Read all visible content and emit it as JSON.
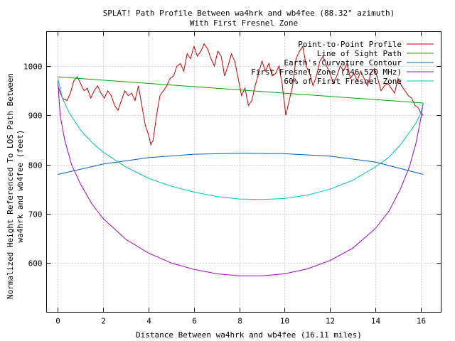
{
  "chart_data": {
    "type": "line",
    "title": "SPLAT! Path Profile Between wa4hrk and wb4fee (88.32° azimuth)",
    "subtitle": "With First Fresnel Zone",
    "xlabel": "Distance Between wa4hrk and wb4fee (16.11 miles)",
    "ylabel_line1": "Normalized Height Referenced To LOS Path Between",
    "ylabel_line2": "wa4hrk and wb4fee (feet)",
    "xlim": [
      -0.5,
      16.9
    ],
    "ylim": [
      500,
      1070
    ],
    "xticks": [
      0,
      2,
      4,
      6,
      8,
      10,
      12,
      14,
      16
    ],
    "yticks": [
      600,
      700,
      800,
      900,
      1000
    ],
    "grid": true,
    "legend_position": "top-right",
    "series": [
      {
        "name": "Point-to-Point Profile",
        "color": "#cc0000",
        "x": [
          0.0,
          0.2,
          0.4,
          0.55,
          0.7,
          0.85,
          1.0,
          1.15,
          1.3,
          1.45,
          1.6,
          1.75,
          1.9,
          2.05,
          2.2,
          2.35,
          2.5,
          2.65,
          2.8,
          2.95,
          3.1,
          3.25,
          3.4,
          3.55,
          3.7,
          3.85,
          4.0,
          4.1,
          4.2,
          4.35,
          4.5,
          4.65,
          4.8,
          4.95,
          5.1,
          5.25,
          5.4,
          5.55,
          5.7,
          5.85,
          6.0,
          6.15,
          6.3,
          6.45,
          6.6,
          6.75,
          6.9,
          7.05,
          7.2,
          7.35,
          7.5,
          7.65,
          7.8,
          7.95,
          8.1,
          8.25,
          8.4,
          8.55,
          8.7,
          8.85,
          9.0,
          9.15,
          9.3,
          9.45,
          9.6,
          9.75,
          9.9,
          10.05,
          10.2,
          10.35,
          10.5,
          10.65,
          10.8,
          10.95,
          11.1,
          11.25,
          11.4,
          11.55,
          11.7,
          11.85,
          12.0,
          12.15,
          12.3,
          12.45,
          12.6,
          12.75,
          12.9,
          13.05,
          13.2,
          13.35,
          13.5,
          13.65,
          13.8,
          13.95,
          14.1,
          14.25,
          14.4,
          14.55,
          14.7,
          14.85,
          15.0,
          15.15,
          15.3,
          15.45,
          15.6,
          15.75,
          15.9,
          16.0,
          16.11
        ],
        "y": [
          960,
          935,
          930,
          945,
          970,
          978,
          965,
          950,
          955,
          935,
          950,
          960,
          945,
          935,
          950,
          940,
          920,
          910,
          930,
          950,
          940,
          945,
          930,
          960,
          920,
          880,
          860,
          840,
          850,
          900,
          940,
          950,
          960,
          975,
          980,
          1000,
          1005,
          990,
          1025,
          1015,
          1040,
          1020,
          1030,
          1045,
          1035,
          1015,
          1000,
          1030,
          1020,
          980,
          1000,
          1025,
          1010,
          975,
          940,
          955,
          920,
          930,
          960,
          985,
          1010,
          990,
          1005,
          980,
          985,
          1000,
          960,
          900,
          930,
          960,
          1015,
          1030,
          1040,
          1000,
          985,
          960,
          980,
          1010,
          1020,
          1000,
          985,
          965,
          980,
          1000,
          990,
          1005,
          975,
          985,
          970,
          990,
          975,
          960,
          985,
          995,
          975,
          950,
          960,
          965,
          955,
          945,
          975,
          960,
          950,
          940,
          935,
          920,
          915,
          905,
          900
        ]
      },
      {
        "name": "Line of Sight Path",
        "color": "#00a000",
        "x": [
          0,
          16.11
        ],
        "y": [
          978,
          925
        ]
      },
      {
        "name": "Earth's Curvature Contour",
        "color": "#0060c0",
        "x": [
          0,
          2,
          4,
          6,
          8,
          8.06,
          10,
          12,
          14,
          16.11
        ],
        "y": [
          780,
          801,
          814,
          821,
          823,
          823,
          822,
          817,
          805,
          780
        ]
      },
      {
        "name": "First Fresnel Zone (146.520 MHz)",
        "color": "#a000c0",
        "x": [
          0,
          0.1,
          0.3,
          0.6,
          1,
          1.5,
          2,
          3,
          4,
          5,
          6,
          7,
          8,
          9,
          10,
          11,
          12,
          13,
          14,
          14.6,
          15.1,
          15.5,
          15.8,
          16.01,
          16.11
        ],
        "y": [
          970,
          900,
          850,
          800,
          760,
          720,
          690,
          648,
          620,
          600,
          587,
          578,
          574,
          574,
          578,
          588,
          605,
          630,
          670,
          705,
          750,
          795,
          845,
          895,
          925
        ]
      },
      {
        "name": "60% of First Fresnel Zone",
        "color": "#00c0c0",
        "x": [
          0,
          0.2,
          0.5,
          1,
          1.5,
          2,
          3,
          4,
          5,
          6,
          7,
          8,
          9,
          10,
          11,
          12,
          13,
          14,
          14.6,
          15.1,
          15.5,
          15.8,
          16.01,
          16.11
        ],
        "y": [
          975,
          935,
          905,
          870,
          845,
          825,
          795,
          772,
          756,
          744,
          735,
          730,
          729,
          731,
          738,
          750,
          768,
          795,
          815,
          840,
          865,
          885,
          905,
          925
        ]
      }
    ]
  }
}
